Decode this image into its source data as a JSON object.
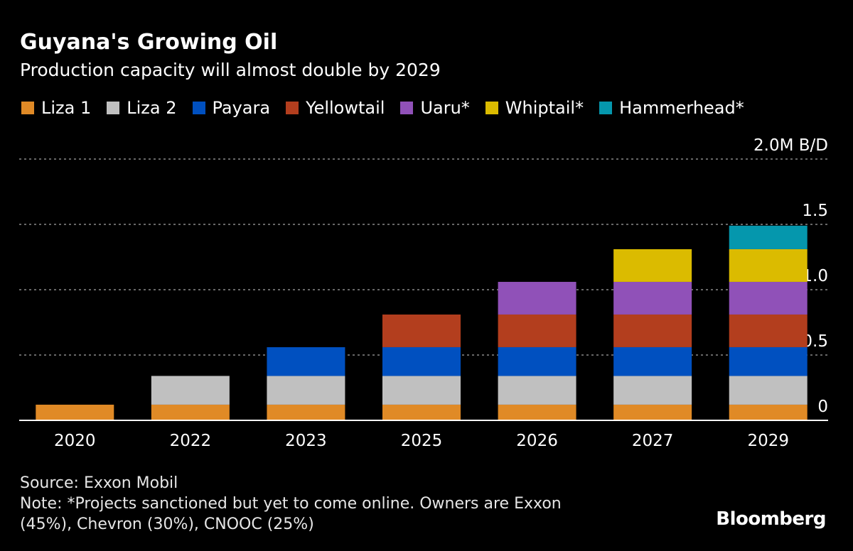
{
  "chart_data": {
    "type": "bar",
    "stacked": true,
    "title": "Guyana's Growing Oil",
    "subtitle": "Production capacity will almost double by 2029",
    "categories": [
      "2020",
      "2022",
      "2023",
      "2025",
      "2026",
      "2027",
      "2029"
    ],
    "series": [
      {
        "name": "Liza 1",
        "color": "#e08a26",
        "values": [
          0.12,
          0.12,
          0.12,
          0.12,
          0.12,
          0.12,
          0.12
        ]
      },
      {
        "name": "Liza 2",
        "color": "#c0c0c0",
        "values": [
          0,
          0.22,
          0.22,
          0.22,
          0.22,
          0.22,
          0.22
        ]
      },
      {
        "name": "Payara",
        "color": "#0050c0",
        "values": [
          0,
          0,
          0.22,
          0.22,
          0.22,
          0.22,
          0.22
        ]
      },
      {
        "name": "Yellowtail",
        "color": "#b33e1e",
        "values": [
          0,
          0,
          0,
          0.25,
          0.25,
          0.25,
          0.25
        ]
      },
      {
        "name": "Uaru*",
        "color": "#9051b8",
        "values": [
          0,
          0,
          0,
          0,
          0.25,
          0.25,
          0.25
        ]
      },
      {
        "name": "Whiptail*",
        "color": "#dbbb00",
        "values": [
          0,
          0,
          0,
          0,
          0,
          0.25,
          0.25
        ]
      },
      {
        "name": "Hammerhead*",
        "color": "#0597ad",
        "values": [
          0,
          0,
          0,
          0,
          0,
          0,
          0.18
        ]
      }
    ],
    "ylim": [
      0,
      2.0
    ],
    "yticks": [
      0,
      0.5,
      1.0,
      1.5,
      2.0
    ],
    "ytick_labels": [
      "0",
      "0.5",
      "1.0",
      "1.5",
      "2.0M B/D"
    ],
    "grid": true,
    "legend_placement": "top-left",
    "yaxis_side": "right"
  },
  "footer": {
    "source": "Source: Exxon Mobil",
    "note_line1": "Note: *Projects sanctioned but yet to come online. Owners are Exxon",
    "note_line2": "(45%), Chevron (30%), CNOOC (25%)"
  },
  "brand": "Bloomberg"
}
